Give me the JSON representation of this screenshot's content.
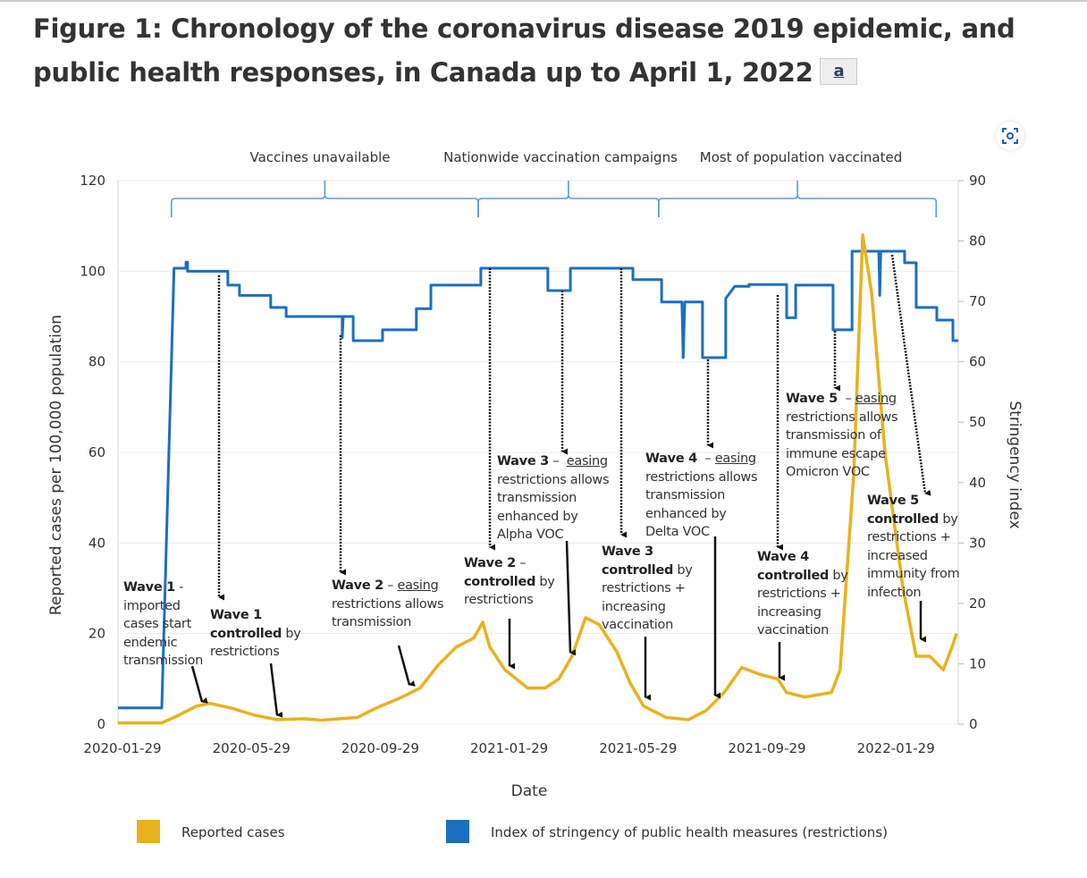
{
  "title": "Figure 1: Chronology of the coronavirus disease 2019 epidemic, and public health responses, in Canada up to April 1, 2022",
  "footnote_link": "a",
  "expand_icon": "focus-expand-icon",
  "chart_data": {
    "type": "line",
    "title": "Chronology of the coronavirus disease 2019 epidemic, and public health responses, in Canada up to April 1, 2022",
    "xlabel": "Date",
    "x_units": "months since 2020-01-29",
    "xticks": [
      0,
      4,
      8,
      12,
      16,
      20,
      24
    ],
    "xtick_labels": [
      "2020-01-29",
      "2020-05-29",
      "2020-09-29",
      "2021-01-29",
      "2021-05-29",
      "2021-09-29",
      "2022-01-29"
    ],
    "xlim": [
      -0.14,
      26.1
    ],
    "ylabel": "Reported cases per 100,000 population",
    "ylim": [
      0,
      120
    ],
    "yticks": [
      0,
      20,
      40,
      60,
      80,
      100,
      120
    ],
    "y2label": "Stringency index",
    "y2lim": [
      0,
      90
    ],
    "y2ticks": [
      0,
      10,
      20,
      30,
      40,
      50,
      60,
      70,
      80,
      90
    ],
    "grid": true,
    "legend_position": "bottom",
    "colors": {
      "cases": "#E8B21E",
      "stringency": "#1B6FC0",
      "phase": "#5B9BD5"
    },
    "series": [
      {
        "name": "Reported cases",
        "axis": "left",
        "points": [
          [
            -0.14,
            0.3
          ],
          [
            1.22,
            0.3
          ],
          [
            1.75,
            2
          ],
          [
            2.3,
            4
          ],
          [
            2.72,
            4.6
          ],
          [
            3.41,
            3.5
          ],
          [
            4.1,
            2
          ],
          [
            4.8,
            1
          ],
          [
            5.63,
            1.2
          ],
          [
            6.18,
            0.9
          ],
          [
            7.29,
            1.5
          ],
          [
            7.85,
            3.5
          ],
          [
            8.68,
            6
          ],
          [
            9.24,
            8
          ],
          [
            9.79,
            13
          ],
          [
            10.35,
            17
          ],
          [
            10.9,
            19
          ],
          [
            11.18,
            22.5
          ],
          [
            11.4,
            17
          ],
          [
            11.87,
            12
          ],
          [
            12.57,
            8
          ],
          [
            13.12,
            8
          ],
          [
            13.54,
            10
          ],
          [
            13.95,
            15
          ],
          [
            14.37,
            23.5
          ],
          [
            14.79,
            22
          ],
          [
            15.34,
            16
          ],
          [
            15.76,
            9
          ],
          [
            16.17,
            4
          ],
          [
            16.87,
            1.5
          ],
          [
            17.56,
            1
          ],
          [
            18.11,
            3
          ],
          [
            18.67,
            7
          ],
          [
            19.22,
            12.5
          ],
          [
            19.78,
            11
          ],
          [
            20.33,
            10
          ],
          [
            20.61,
            7
          ],
          [
            21.17,
            6
          ],
          [
            22,
            7
          ],
          [
            22.27,
            12
          ],
          [
            22.69,
            55
          ],
          [
            22.97,
            108
          ],
          [
            23.25,
            95
          ],
          [
            23.66,
            60
          ],
          [
            24.22,
            30
          ],
          [
            24.63,
            15
          ],
          [
            25.05,
            15
          ],
          [
            25.47,
            12
          ],
          [
            25.74,
            17
          ],
          [
            25.88,
            20
          ]
        ]
      },
      {
        "name": "Index of stringency of public health measures (restrictions)",
        "axis": "right",
        "points": [
          [
            -0.14,
            2.7
          ],
          [
            1.22,
            2.7
          ],
          [
            1.6,
            75.5
          ],
          [
            1.97,
            75.5
          ],
          [
            1.97,
            76.5
          ],
          [
            2.02,
            76.5
          ],
          [
            2.02,
            75
          ],
          [
            3.27,
            75
          ],
          [
            3.27,
            72.7
          ],
          [
            3.63,
            72.7
          ],
          [
            3.63,
            71
          ],
          [
            4.6,
            71
          ],
          [
            4.6,
            69
          ],
          [
            5.08,
            69
          ],
          [
            5.08,
            67.5
          ],
          [
            6.82,
            67.5
          ],
          [
            6.82,
            64
          ],
          [
            6.85,
            67.5
          ],
          [
            7.16,
            67.5
          ],
          [
            7.16,
            63.5
          ],
          [
            8.07,
            63.5
          ],
          [
            8.07,
            65.3
          ],
          [
            9.12,
            65.3
          ],
          [
            9.12,
            68.8
          ],
          [
            9.57,
            68.8
          ],
          [
            9.57,
            72.7
          ],
          [
            11.12,
            72.7
          ],
          [
            11.12,
            75.5
          ],
          [
            13.2,
            75.5
          ],
          [
            13.2,
            71.8
          ],
          [
            13.9,
            71.8
          ],
          [
            13.9,
            75.5
          ],
          [
            15.84,
            75.5
          ],
          [
            15.84,
            73.6
          ],
          [
            16.73,
            73.6
          ],
          [
            16.73,
            69.9
          ],
          [
            17.36,
            69.9
          ],
          [
            17.4,
            60.7
          ],
          [
            17.45,
            69.9
          ],
          [
            18.0,
            69.9
          ],
          [
            18.0,
            60.7
          ],
          [
            18.72,
            60.7
          ],
          [
            18.72,
            70.5
          ],
          [
            19.0,
            72.5
          ],
          [
            19.44,
            72.5
          ],
          [
            19.44,
            72.8
          ],
          [
            20.61,
            72.8
          ],
          [
            20.61,
            67.3
          ],
          [
            20.89,
            67.3
          ],
          [
            20.89,
            72.7
          ],
          [
            22.05,
            72.7
          ],
          [
            22.05,
            65.3
          ],
          [
            22.64,
            65.3
          ],
          [
            22.64,
            78.3
          ],
          [
            23.47,
            78.3
          ],
          [
            23.5,
            71
          ],
          [
            23.53,
            78.3
          ],
          [
            24.27,
            78.3
          ],
          [
            24.27,
            76.4
          ],
          [
            24.63,
            76.4
          ],
          [
            24.63,
            69
          ],
          [
            25.27,
            69
          ],
          [
            25.27,
            66.9
          ],
          [
            25.77,
            66.9
          ],
          [
            25.77,
            63.5
          ],
          [
            25.94,
            63.5
          ]
        ]
      }
    ],
    "phases": [
      {
        "label": "Vaccines unavailable",
        "start": 1.52,
        "end": 11.04
      },
      {
        "label": "Nationwide vaccination campaigns",
        "start": 11.04,
        "end": 16.64
      },
      {
        "label": "Most of population vaccinated",
        "start": 16.64,
        "end": 25.25
      }
    ],
    "annotations": [
      {
        "lines": [
          [
            [
              "Wave 1",
              "b"
            ],
            [
              " -",
              ""
            ]
          ],
          [
            [
              "imported",
              ""
            ]
          ],
          [
            [
              "cases start",
              ""
            ]
          ],
          [
            [
              "endemic",
              ""
            ]
          ],
          [
            [
              "transmission",
              ""
            ]
          ]
        ]
      },
      {
        "lines": [
          [
            [
              "Wave 1",
              "b"
            ]
          ],
          [
            [
              "controlled",
              "b"
            ],
            [
              " by",
              ""
            ]
          ],
          [
            [
              "restrictions",
              ""
            ]
          ]
        ]
      },
      {
        "lines": [
          [
            [
              "Wave 2",
              "b"
            ],
            [
              " – ",
              ""
            ],
            [
              "easing",
              "u"
            ]
          ],
          [
            [
              "restrictions allows",
              ""
            ]
          ],
          [
            [
              "transmission",
              ""
            ]
          ]
        ]
      },
      {
        "lines": [
          [
            [
              "Wave 2",
              "b"
            ],
            [
              " –",
              ""
            ]
          ],
          [
            [
              "controlled",
              "b"
            ],
            [
              " by",
              ""
            ]
          ],
          [
            [
              "restrictions",
              ""
            ]
          ]
        ]
      },
      {
        "lines": [
          [
            [
              "Wave 3",
              "b"
            ],
            [
              " –  ",
              ""
            ],
            [
              "easing",
              "u"
            ]
          ],
          [
            [
              "restrictions allows",
              ""
            ]
          ],
          [
            [
              "transmission",
              ""
            ]
          ],
          [
            [
              "enhanced by",
              ""
            ]
          ],
          [
            [
              "Alpha VOC",
              ""
            ]
          ]
        ]
      },
      {
        "lines": [
          [
            [
              "Wave 3",
              "b"
            ]
          ],
          [
            [
              "controlled",
              "b"
            ],
            [
              " by",
              ""
            ]
          ],
          [
            [
              "restrictions +",
              ""
            ]
          ],
          [
            [
              "increasing",
              ""
            ]
          ],
          [
            [
              "vaccination",
              ""
            ]
          ]
        ]
      },
      {
        "lines": [
          [
            [
              "Wave 4",
              "b"
            ],
            [
              "  – ",
              ""
            ],
            [
              "easing",
              "u"
            ]
          ],
          [
            [
              "restrictions allows",
              ""
            ]
          ],
          [
            [
              "transmission",
              ""
            ]
          ],
          [
            [
              "enhanced by",
              ""
            ]
          ],
          [
            [
              "Delta VOC",
              ""
            ]
          ]
        ]
      },
      {
        "lines": [
          [
            [
              "Wave 4",
              "b"
            ]
          ],
          [
            [
              "controlled",
              "b"
            ],
            [
              " by",
              ""
            ]
          ],
          [
            [
              "restrictions +",
              ""
            ]
          ],
          [
            [
              "increasing",
              ""
            ]
          ],
          [
            [
              "vaccination",
              ""
            ]
          ]
        ]
      },
      {
        "lines": [
          [
            [
              "Wave 5",
              "b"
            ],
            [
              "  – ",
              ""
            ],
            [
              "easing",
              "u"
            ]
          ],
          [
            [
              "restrictions allows",
              ""
            ]
          ],
          [
            [
              "transmission of",
              ""
            ]
          ],
          [
            [
              "immune escape",
              ""
            ]
          ],
          [
            [
              "Omicron VOC",
              ""
            ]
          ]
        ]
      },
      {
        "lines": [
          [
            [
              "Wave 5",
              "b"
            ]
          ],
          [
            [
              "controlled",
              "b"
            ],
            [
              " by",
              ""
            ]
          ],
          [
            [
              "restrictions +",
              ""
            ]
          ],
          [
            [
              "increased",
              ""
            ]
          ],
          [
            [
              "immunity from",
              ""
            ]
          ],
          [
            [
              "infection",
              ""
            ]
          ]
        ]
      }
    ],
    "legend": [
      "Reported cases",
      "Index of stringency of public health measures (restrictions)"
    ]
  }
}
